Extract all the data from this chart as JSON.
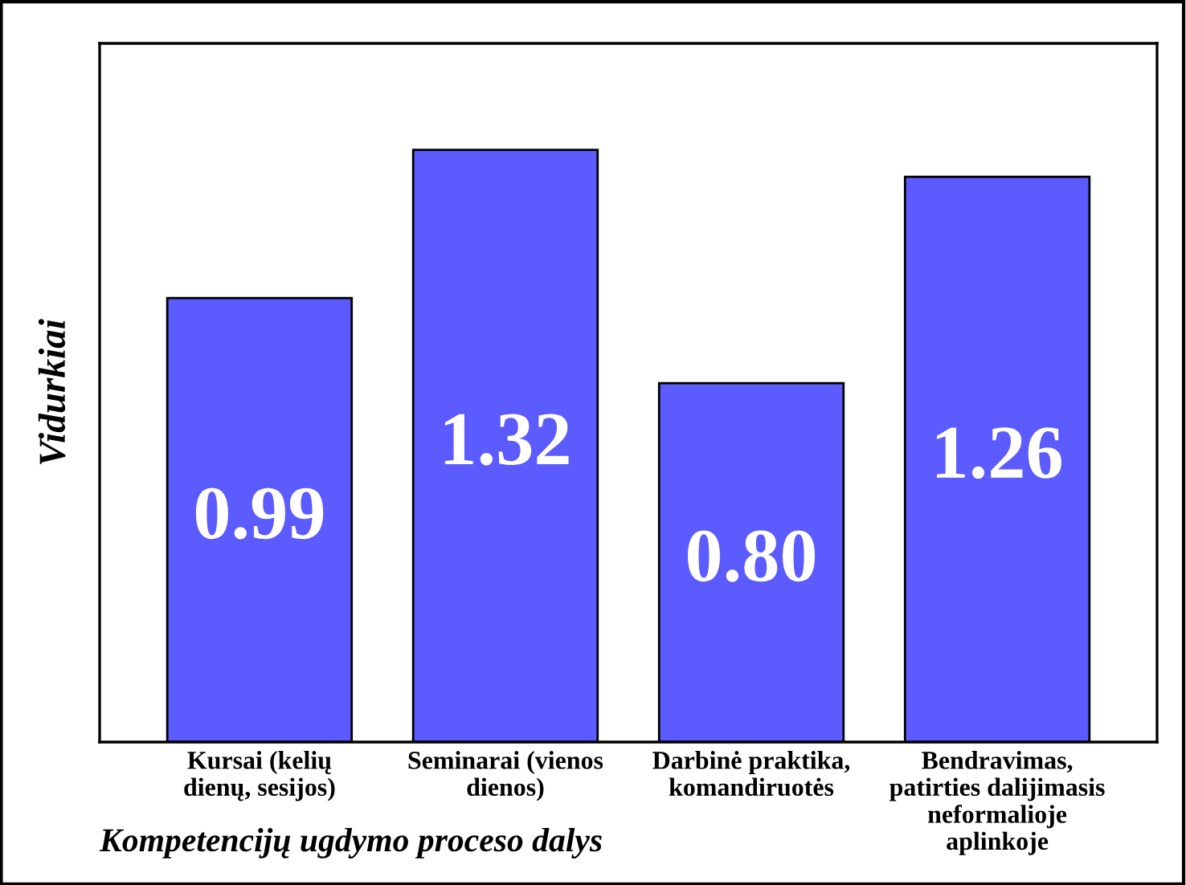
{
  "chart_data": {
    "type": "bar",
    "ylabel": "Vidurkiai",
    "xlabel": "Kompetencijų ugdymo proceso dalys",
    "categories": [
      "Kursai (kelių\ndienų, sesijos)",
      "Seminarai (vienos\ndienos)",
      "Darbinė praktika,\nkomandiruotės",
      "Bendravimas,\npatirties dalijimasis\nneformalioje\naplinkoje"
    ],
    "values": [
      0.99,
      1.32,
      0.8,
      1.26
    ],
    "color": "#5b5bff",
    "data_labels": true,
    "value_labels": [
      "0.99",
      "1.32",
      "0.80",
      "1.26"
    ],
    "grid": false,
    "legend": false,
    "tick_labels": "x"
  }
}
